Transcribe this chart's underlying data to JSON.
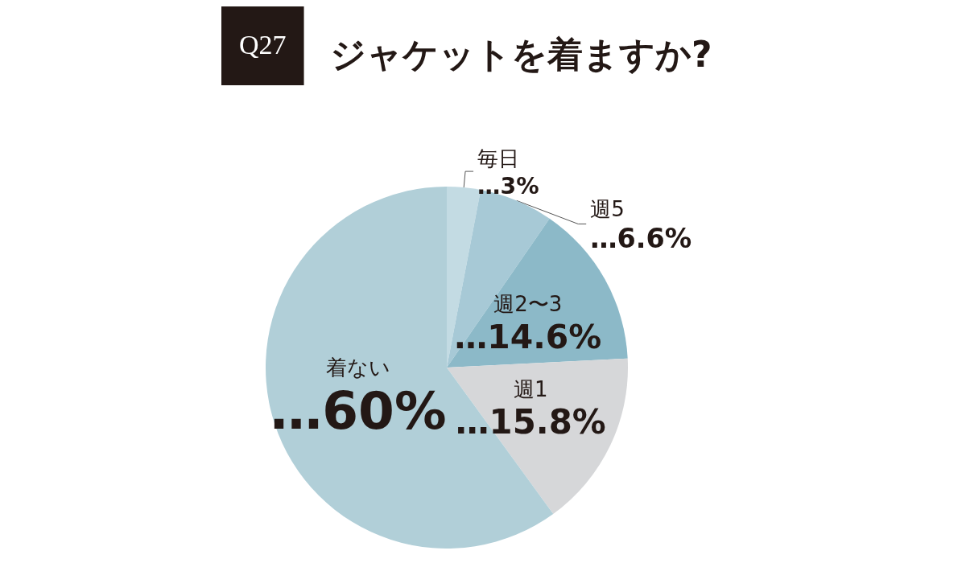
{
  "chart_data": {
    "type": "pie",
    "title": "ジャケットを着ますか?",
    "annotations": [
      "Q27"
    ],
    "categories": [
      "毎日",
      "週5 ",
      "週2〜3",
      "週1",
      "着ない"
    ],
    "values": [
      3,
      6.6,
      14.6,
      15.8,
      60
    ],
    "value_labels": [
      "…3%",
      "…6.6%",
      "…14.6%",
      "…15.8%",
      "…60%"
    ],
    "colors": [
      "#c3dbe3",
      "#a7c9d6",
      "#8cb9c8",
      "#d6d7d9",
      "#b1cfd8"
    ]
  }
}
